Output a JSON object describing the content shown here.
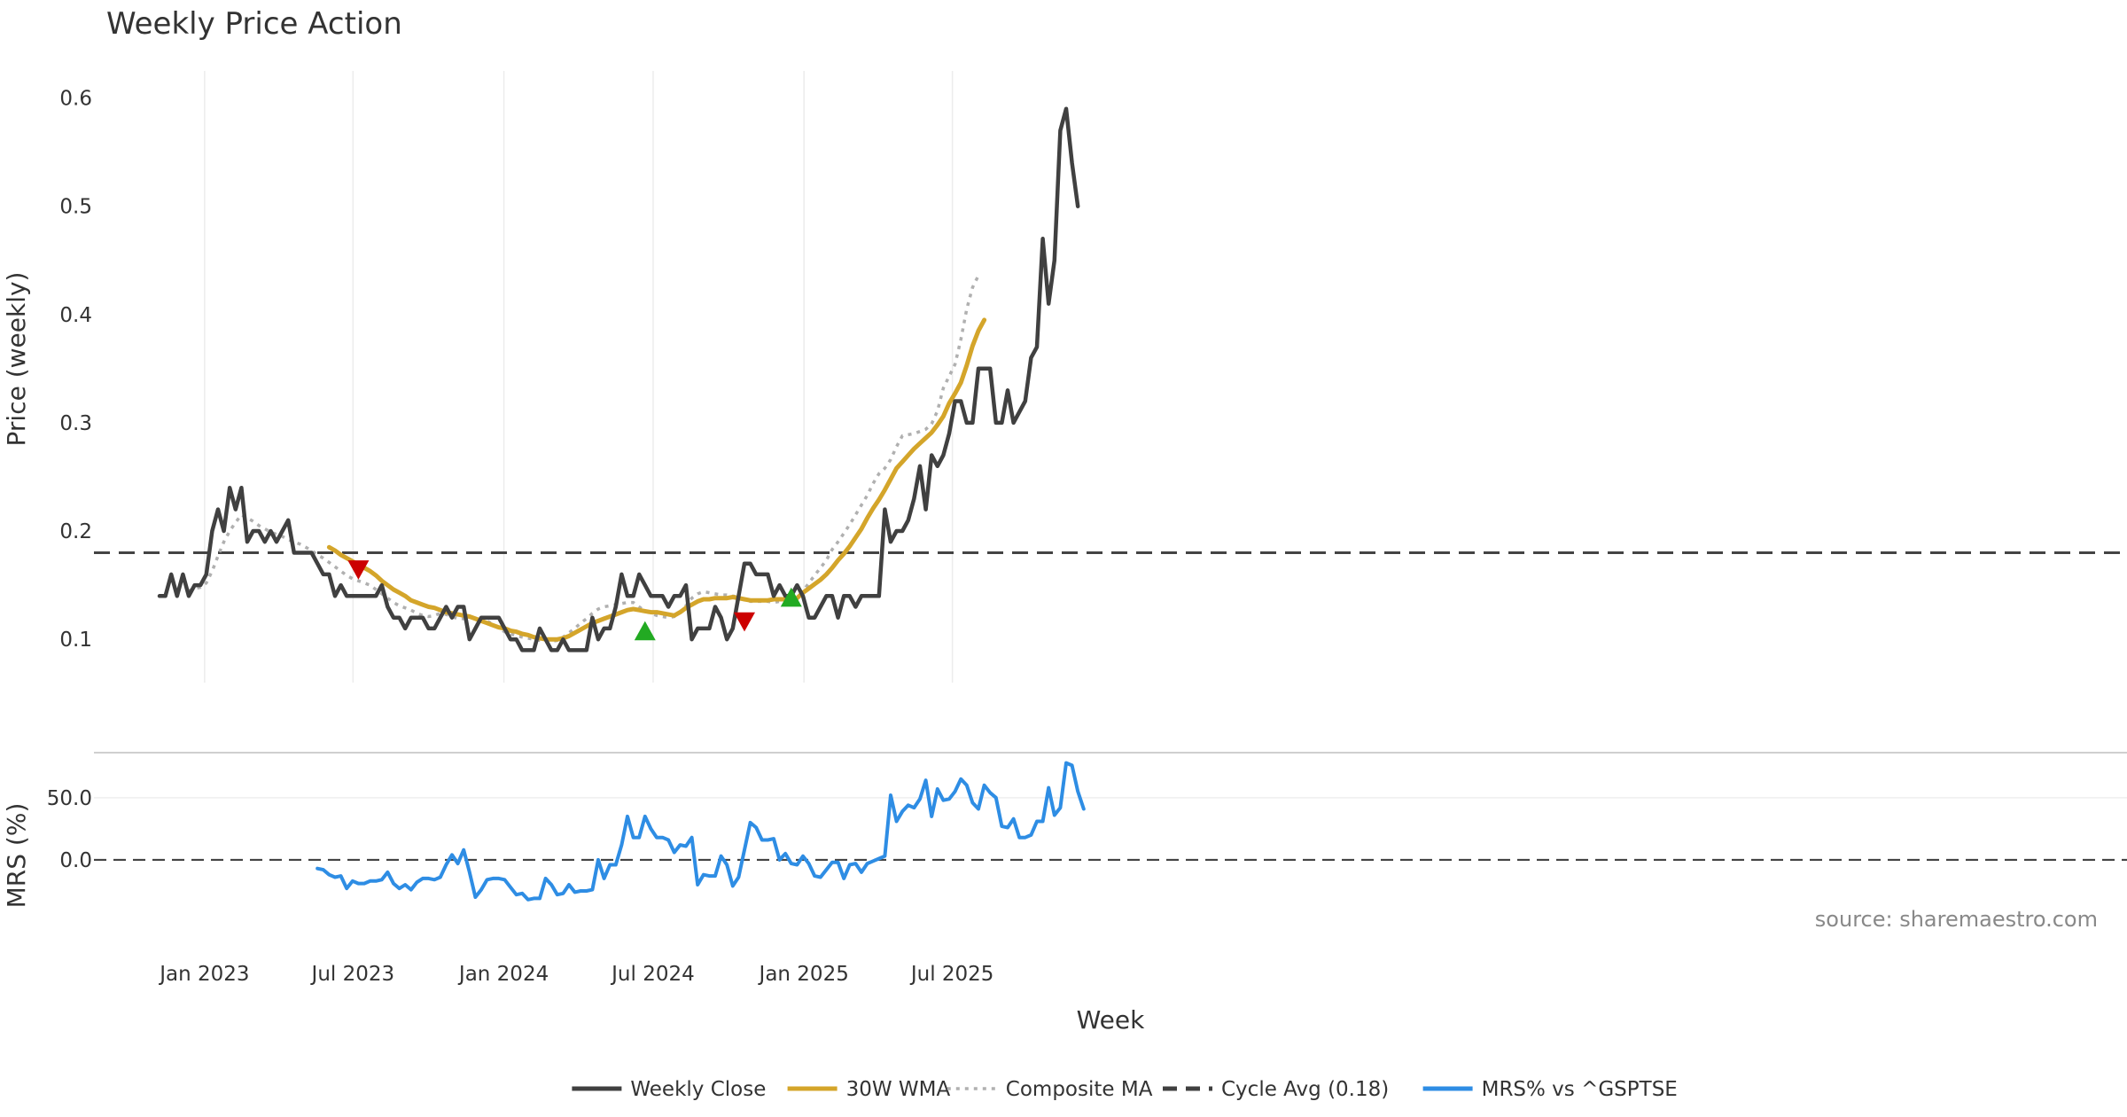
{
  "chart_data": {
    "type": "line",
    "title": "Weekly Price Action",
    "xlabel": "Week",
    "x_ticks": [
      "Jan 2023",
      "Jul 2023",
      "Jan 2024",
      "Jul 2024",
      "Jan 2025",
      "Jul 2025"
    ],
    "x_start": "2022-11-07",
    "x_end": "2025-12-01",
    "source": "source: sharemaestro.com",
    "price_panel": {
      "ylabel": "Price (weekly)",
      "y_ticks": [
        "0.1",
        "0.2",
        "0.3",
        "0.4",
        "0.5",
        "0.6"
      ],
      "ylim": [
        0.06,
        0.625
      ],
      "cycle_avg": 0.18,
      "series": [
        {
          "name": "Weekly Close",
          "color": "#404040",
          "style": "solid",
          "values": [
            0.14,
            0.14,
            0.16,
            0.14,
            0.16,
            0.14,
            0.15,
            0.15,
            0.16,
            0.2,
            0.22,
            0.2,
            0.24,
            0.22,
            0.24,
            0.19,
            0.2,
            0.2,
            0.19,
            0.2,
            0.19,
            0.2,
            0.21,
            0.18,
            0.18,
            0.18,
            0.18,
            0.17,
            0.16,
            0.16,
            0.14,
            0.15,
            0.14,
            0.14,
            0.14,
            0.14,
            0.14,
            0.14,
            0.15,
            0.13,
            0.12,
            0.12,
            0.11,
            0.12,
            0.12,
            0.12,
            0.11,
            0.11,
            0.12,
            0.13,
            0.12,
            0.13,
            0.13,
            0.1,
            0.11,
            0.12,
            0.12,
            0.12,
            0.12,
            0.11,
            0.1,
            0.1,
            0.09,
            0.09,
            0.09,
            0.11,
            0.1,
            0.09,
            0.09,
            0.1,
            0.09,
            0.09,
            0.09,
            0.09,
            0.12,
            0.1,
            0.11,
            0.11,
            0.13,
            0.16,
            0.14,
            0.14,
            0.16,
            0.15,
            0.14,
            0.14,
            0.14,
            0.13,
            0.14,
            0.14,
            0.15,
            0.1,
            0.11,
            0.11,
            0.11,
            0.13,
            0.12,
            0.1,
            0.11,
            0.14,
            0.17,
            0.17,
            0.16,
            0.16,
            0.16,
            0.14,
            0.15,
            0.14,
            0.14,
            0.15,
            0.14,
            0.12,
            0.12,
            0.13,
            0.14,
            0.14,
            0.12,
            0.14,
            0.14,
            0.13,
            0.14,
            0.14,
            0.14,
            0.14,
            0.22,
            0.19,
            0.2,
            0.2,
            0.21,
            0.23,
            0.26,
            0.22,
            0.27,
            0.26,
            0.27,
            0.29,
            0.32,
            0.32,
            0.3,
            0.3,
            0.35,
            0.35,
            0.35,
            0.3,
            0.3,
            0.33,
            0.3,
            0.31,
            0.32,
            0.36,
            0.37,
            0.47,
            0.41,
            0.45,
            0.57,
            0.59,
            0.54,
            0.5
          ]
        },
        {
          "name": "30W WMA",
          "color": "#d4a52a",
          "style": "solid",
          "start_index": 29,
          "values": [
            0.185,
            0.182,
            0.178,
            0.175,
            0.172,
            0.169,
            0.166,
            0.163,
            0.159,
            0.154,
            0.15,
            0.146,
            0.143,
            0.14,
            0.136,
            0.134,
            0.132,
            0.13,
            0.129,
            0.127,
            0.125,
            0.124,
            0.123,
            0.122,
            0.121,
            0.119,
            0.117,
            0.115,
            0.113,
            0.111,
            0.11,
            0.108,
            0.107,
            0.105,
            0.104,
            0.102,
            0.101,
            0.1,
            0.1,
            0.1,
            0.101,
            0.103,
            0.106,
            0.109,
            0.112,
            0.115,
            0.117,
            0.119,
            0.121,
            0.123,
            0.125,
            0.127,
            0.128,
            0.127,
            0.126,
            0.125,
            0.125,
            0.124,
            0.123,
            0.122,
            0.125,
            0.129,
            0.132,
            0.135,
            0.137,
            0.137,
            0.138,
            0.138,
            0.138,
            0.139,
            0.138,
            0.137,
            0.136,
            0.136,
            0.136,
            0.136,
            0.137,
            0.137,
            0.137,
            0.137,
            0.138,
            0.143,
            0.147,
            0.151,
            0.155,
            0.16,
            0.166,
            0.173,
            0.179,
            0.186,
            0.194,
            0.202,
            0.212,
            0.221,
            0.229,
            0.238,
            0.248,
            0.258,
            0.264,
            0.27,
            0.276,
            0.281,
            0.286,
            0.291,
            0.298,
            0.306,
            0.318,
            0.327,
            0.337,
            0.353,
            0.371,
            0.385,
            0.395
          ]
        },
        {
          "name": "Composite MA",
          "color": "#b0b0b0",
          "style": "dotted",
          "start_index": 5,
          "values": [
            0.145,
            0.147,
            0.148,
            0.152,
            0.163,
            0.177,
            0.19,
            0.2,
            0.208,
            0.215,
            0.212,
            0.209,
            0.205,
            0.202,
            0.199,
            0.197,
            0.195,
            0.192,
            0.19,
            0.188,
            0.185,
            0.182,
            0.178,
            0.175,
            0.171,
            0.167,
            0.163,
            0.159,
            0.156,
            0.154,
            0.152,
            0.15,
            0.146,
            0.142,
            0.138,
            0.134,
            0.131,
            0.129,
            0.127,
            0.124,
            0.122,
            0.121,
            0.122,
            0.124,
            0.123,
            0.121,
            0.119,
            0.119,
            0.12,
            0.12,
            0.119,
            0.117,
            0.114,
            0.11,
            0.107,
            0.105,
            0.103,
            0.102,
            0.101,
            0.1,
            0.099,
            0.098,
            0.098,
            0.099,
            0.102,
            0.106,
            0.11,
            0.115,
            0.119,
            0.124,
            0.128,
            0.13,
            0.131,
            0.132,
            0.133,
            0.134,
            0.134,
            0.13,
            0.126,
            0.124,
            0.122,
            0.121,
            0.12,
            0.121,
            0.125,
            0.131,
            0.138,
            0.142,
            0.144,
            0.143,
            0.142,
            0.141,
            0.141,
            0.14,
            0.139,
            0.137,
            0.135,
            0.135,
            0.135,
            0.135,
            0.134,
            0.135,
            0.136,
            0.137,
            0.139,
            0.144,
            0.152,
            0.159,
            0.166,
            0.173,
            0.183,
            0.19,
            0.198,
            0.206,
            0.215,
            0.224,
            0.233,
            0.244,
            0.253,
            0.258,
            0.266,
            0.278,
            0.288,
            0.289,
            0.29,
            0.292,
            0.294,
            0.299,
            0.311,
            0.332,
            0.343,
            0.354,
            0.377,
            0.405,
            0.425,
            0.436
          ]
        }
      ],
      "markers": [
        {
          "type": "sell",
          "color": "#cc0000",
          "index": 34,
          "value": 0.165
        },
        {
          "type": "buy",
          "color": "#22aa22",
          "index": 83,
          "value": 0.107
        },
        {
          "type": "sell",
          "color": "#cc0000",
          "index": 100,
          "value": 0.117
        },
        {
          "type": "buy",
          "color": "#22aa22",
          "index": 108,
          "value": 0.138
        }
      ]
    },
    "mrs_panel": {
      "ylabel": "MRS (%)",
      "y_ticks": [
        "0.0",
        "50.0"
      ],
      "ylim": [
        -50,
        82
      ],
      "series": [
        {
          "name": "MRS% vs ^GSPTSE",
          "color": "#2e8de4",
          "start_index": 27,
          "values": [
            -7,
            -8,
            -12,
            -14,
            -13,
            -23,
            -17,
            -19,
            -19,
            -17,
            -17,
            -16,
            -10,
            -19,
            -23,
            -20,
            -24,
            -18,
            -15,
            -15,
            -16,
            -14,
            -4,
            4,
            -3,
            8,
            -10,
            -30,
            -24,
            -16,
            -15,
            -15,
            -16,
            -22,
            -28,
            -27,
            -32,
            -31,
            -31,
            -15,
            -20,
            -28,
            -27,
            -20,
            -26,
            -25,
            -25,
            -24,
            0,
            -15,
            -4,
            -4,
            12,
            35,
            18,
            18,
            35,
            25,
            18,
            18,
            16,
            6,
            12,
            11,
            18,
            -20,
            -12,
            -13,
            -13,
            3,
            -4,
            -21,
            -14,
            8,
            30,
            26,
            16,
            16,
            17,
            0,
            5,
            -3,
            -4,
            3,
            -3,
            -13,
            -14,
            -8,
            -2,
            -2,
            -15,
            -4,
            -3,
            -10,
            -3,
            -1,
            1,
            3,
            52,
            31,
            39,
            44,
            42,
            49,
            64,
            35,
            57,
            48,
            49,
            55,
            65,
            60,
            46,
            41,
            60,
            54,
            50,
            27,
            26,
            33,
            18,
            18,
            20,
            31,
            31,
            58,
            36,
            42,
            78,
            76,
            55,
            41
          ]
        }
      ]
    },
    "legend": [
      {
        "label": "Weekly Close",
        "color": "#404040",
        "style": "solid"
      },
      {
        "label": "30W WMA",
        "color": "#d4a52a",
        "style": "solid"
      },
      {
        "label": "Composite MA",
        "color": "#b0b0b0",
        "style": "dotted"
      },
      {
        "label": "Cycle Avg (0.18)",
        "color": "#404040",
        "style": "dashed"
      },
      {
        "label": "MRS% vs ^GSPTSE",
        "color": "#2e8de4",
        "style": "solid"
      }
    ],
    "legend_placement": "bottom-center",
    "grid": true
  }
}
